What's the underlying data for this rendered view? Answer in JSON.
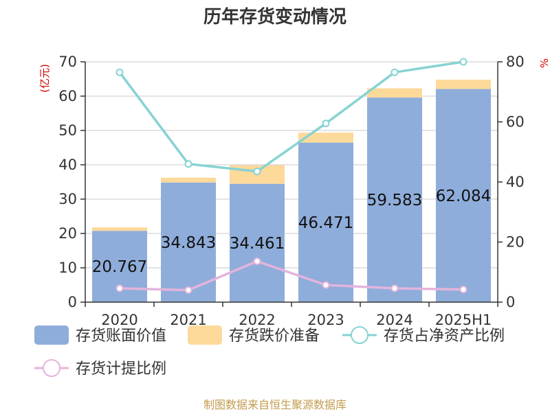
{
  "title": "历年存货变动情况",
  "left_unit": "(亿元)",
  "right_unit": "%",
  "source": "制图数据来自恒生聚源数据库",
  "colors": {
    "book_value": "#8fadda",
    "provision": "#fdd99a",
    "net_assets_ratio": "#86d3d3",
    "provision_ratio": "#e4b4dc",
    "axis": "#333333",
    "grid": "#c8c8c8"
  },
  "legend": [
    {
      "key": "book_value",
      "label": "存货账面价值",
      "type": "bar"
    },
    {
      "key": "provision",
      "label": "存货跌价准备",
      "type": "bar"
    },
    {
      "key": "net_assets_ratio",
      "label": "存货占净资产比例",
      "type": "line"
    },
    {
      "key": "provision_ratio",
      "label": "存货计提比例",
      "type": "line"
    }
  ],
  "chart_data": {
    "type": "bar",
    "title": "历年存货变动情况",
    "categories": [
      "2020",
      "2021",
      "2022",
      "2023",
      "2024",
      "2025H1"
    ],
    "left_axis": {
      "label": "(亿元)",
      "ylim": [
        0,
        70
      ],
      "ticks": [
        0,
        10,
        20,
        30,
        40,
        50,
        60,
        70
      ]
    },
    "right_axis": {
      "label": "%",
      "ylim": [
        0,
        80
      ],
      "ticks": [
        0,
        20,
        40,
        60,
        80
      ]
    },
    "grid": true,
    "legend_position": "bottom",
    "stacked_bars": [
      {
        "name": "存货账面价值",
        "axis": "left",
        "values": [
          20.767,
          34.843,
          34.461,
          46.471,
          59.583,
          62.084
        ],
        "labels": [
          "20.767",
          "34.843",
          "34.461",
          "46.471",
          "59.583",
          "62.084"
        ]
      },
      {
        "name": "存货跌价准备",
        "axis": "left",
        "values": [
          1.0,
          1.4,
          5.4,
          2.9,
          2.7,
          2.7
        ]
      }
    ],
    "lines": [
      {
        "name": "存货占净资产比例",
        "axis": "right",
        "values": [
          76.5,
          46.0,
          43.5,
          59.5,
          76.5,
          80.0
        ]
      },
      {
        "name": "存货计提比例",
        "axis": "right",
        "values": [
          4.6,
          4.0,
          13.6,
          5.7,
          4.6,
          4.2
        ]
      }
    ]
  }
}
